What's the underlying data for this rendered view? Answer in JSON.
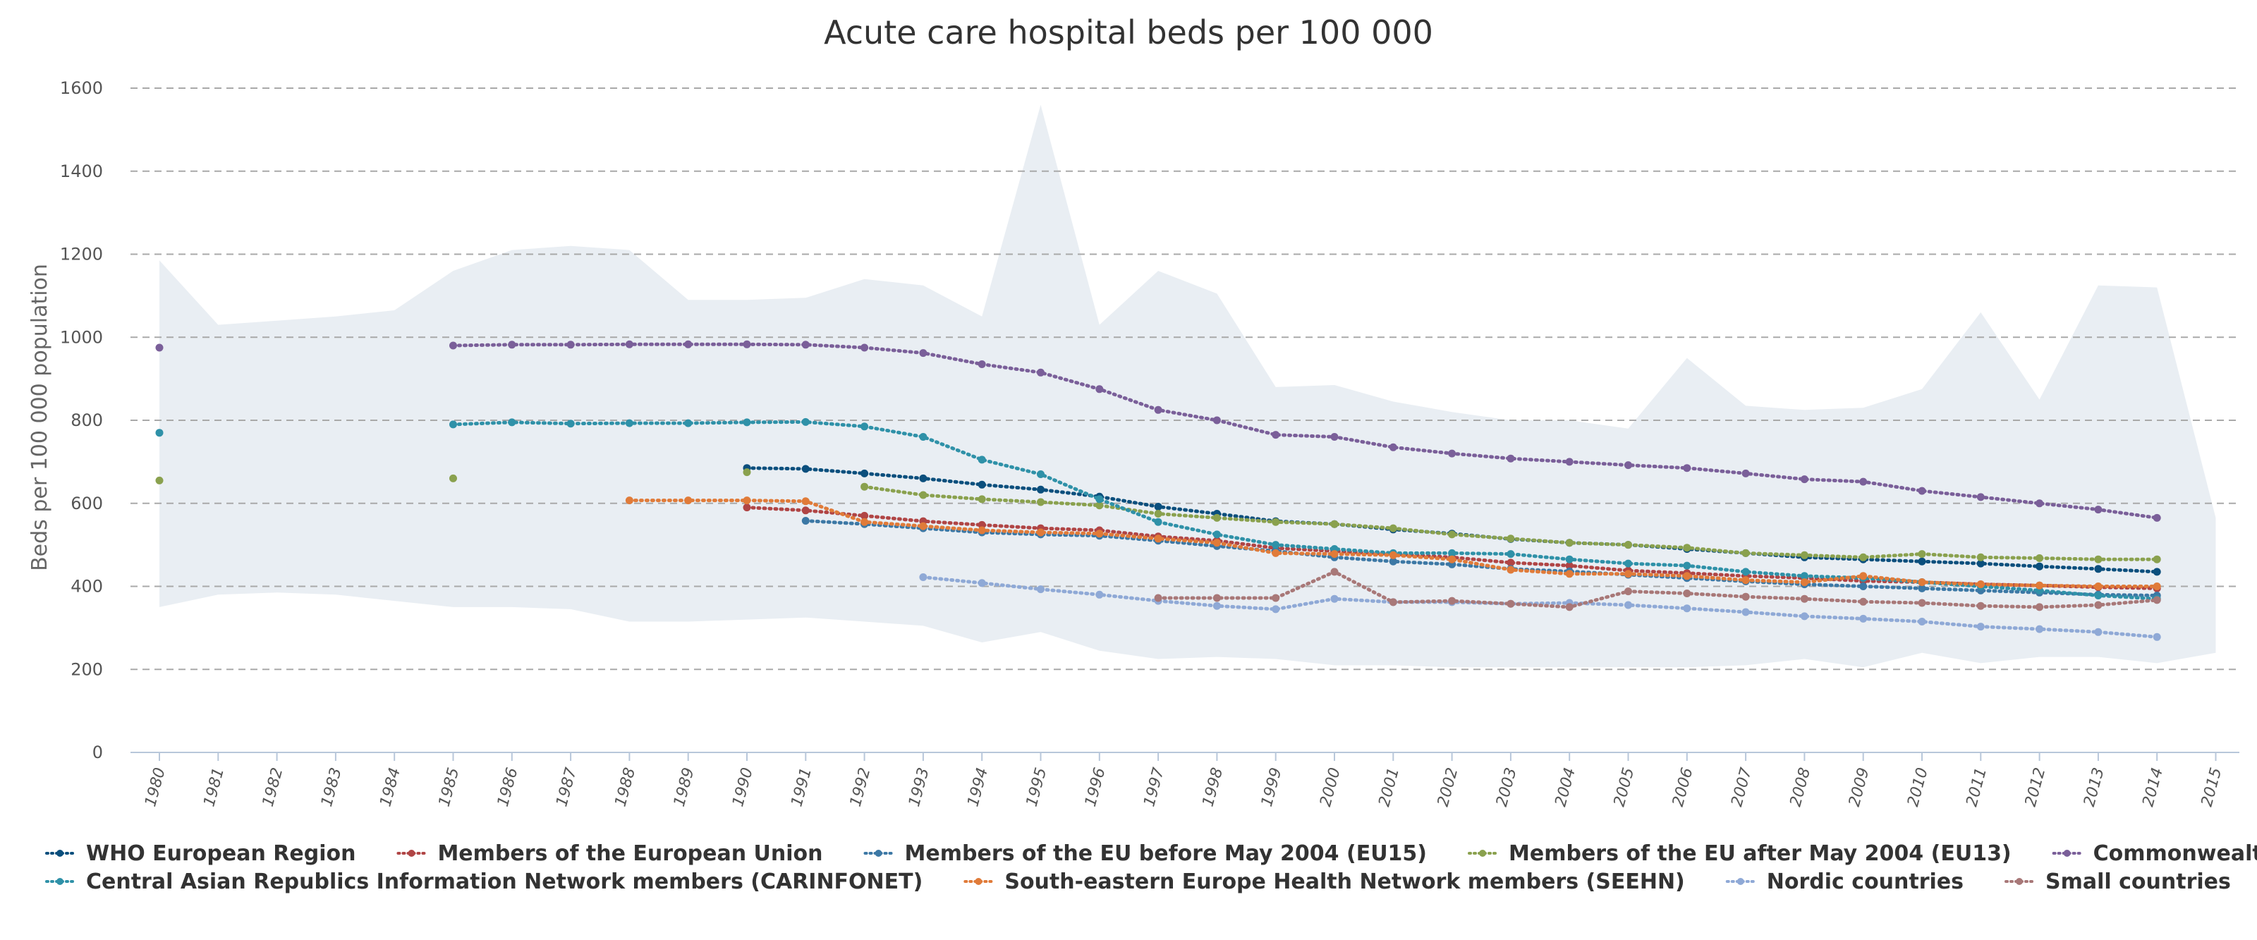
{
  "chart_data": {
    "type": "line",
    "title": "Acute care hospital beds per 100 000",
    "xlabel": "",
    "ylabel": "Beds per 100 000 population",
    "ylim": [
      0,
      1600
    ],
    "y_ticks": [
      0,
      200,
      400,
      600,
      800,
      1000,
      1200,
      1400,
      1600
    ],
    "x": [
      1980,
      1981,
      1982,
      1983,
      1984,
      1985,
      1986,
      1987,
      1988,
      1989,
      1990,
      1991,
      1992,
      1993,
      1994,
      1995,
      1996,
      1997,
      1998,
      1999,
      2000,
      2001,
      2002,
      2003,
      2004,
      2005,
      2006,
      2007,
      2008,
      2009,
      2010,
      2011,
      2012,
      2013,
      2014,
      2015
    ],
    "grid": true,
    "legend_position": "bottom",
    "range_band": {
      "color": "#e9eef3",
      "max": [
        1185,
        1030,
        1040,
        1050,
        1065,
        1160,
        1210,
        1220,
        1210,
        1090,
        1090,
        1095,
        1140,
        1125,
        1050,
        1560,
        1030,
        1160,
        1105,
        880,
        885,
        845,
        820,
        800,
        800,
        780,
        950,
        835,
        825,
        830,
        875,
        1060,
        850,
        1125,
        1120,
        565
      ],
      "min": [
        350,
        380,
        385,
        380,
        365,
        350,
        350,
        345,
        315,
        315,
        320,
        325,
        315,
        305,
        265,
        290,
        245,
        225,
        230,
        225,
        210,
        210,
        205,
        205,
        205,
        205,
        205,
        210,
        225,
        205,
        240,
        215,
        230,
        230,
        215,
        240
      ]
    },
    "series": [
      {
        "name": "WHO European Region",
        "color": "#0b4f7d",
        "values": [
          null,
          null,
          null,
          null,
          null,
          null,
          null,
          null,
          null,
          null,
          685,
          683,
          672,
          660,
          645,
          633,
          616,
          592,
          575,
          557,
          550,
          537,
          527,
          514,
          505,
          500,
          490,
          480,
          470,
          465,
          460,
          455,
          448,
          442,
          435,
          null
        ]
      },
      {
        "name": "Members of the European Union",
        "color": "#b04545",
        "values": [
          null,
          null,
          null,
          null,
          null,
          null,
          null,
          null,
          null,
          null,
          590,
          583,
          570,
          557,
          548,
          540,
          535,
          520,
          510,
          492,
          485,
          478,
          470,
          457,
          450,
          438,
          432,
          425,
          420,
          413,
          410,
          405,
          402,
          398,
          395,
          null
        ]
      },
      {
        "name": "Members of the EU before May 2004 (EU15)",
        "color": "#3c78a5",
        "values": [
          null,
          null,
          null,
          null,
          null,
          null,
          null,
          null,
          null,
          null,
          null,
          558,
          550,
          540,
          530,
          525,
          522,
          510,
          497,
          485,
          470,
          460,
          453,
          442,
          436,
          428,
          420,
          412,
          405,
          400,
          395,
          390,
          385,
          380,
          378,
          null
        ]
      },
      {
        "name": "Members of the EU after May 2004 (EU13)",
        "color": "#8aa14e",
        "values": [
          655,
          null,
          null,
          null,
          null,
          660,
          null,
          null,
          null,
          null,
          675,
          null,
          640,
          620,
          610,
          603,
          595,
          575,
          565,
          555,
          550,
          540,
          525,
          515,
          505,
          500,
          493,
          480,
          475,
          470,
          478,
          470,
          468,
          465,
          465,
          null
        ]
      },
      {
        "name": "Commonwealth of Independent States",
        "color": "#7a5f99",
        "values": [
          975,
          null,
          null,
          null,
          null,
          980,
          982,
          982,
          983,
          983,
          983,
          982,
          975,
          962,
          935,
          915,
          875,
          825,
          800,
          765,
          760,
          735,
          720,
          708,
          700,
          692,
          685,
          672,
          658,
          652,
          630,
          615,
          600,
          585,
          565,
          null
        ]
      },
      {
        "name": "Central Asian Republics Information Network members (CARINFONET)",
        "color": "#2f91a8",
        "values": [
          770,
          null,
          null,
          null,
          null,
          790,
          795,
          792,
          793,
          793,
          795,
          796,
          785,
          760,
          705,
          670,
          610,
          555,
          525,
          500,
          490,
          480,
          480,
          478,
          465,
          455,
          450,
          435,
          425,
          420,
          410,
          400,
          390,
          378,
          370,
          null
        ]
      },
      {
        "name": "South-eastern Europe Health Network members (SEEHN)",
        "color": "#e07b39",
        "values": [
          null,
          null,
          null,
          null,
          null,
          null,
          null,
          null,
          607,
          607,
          607,
          605,
          555,
          545,
          535,
          530,
          527,
          515,
          505,
          480,
          478,
          475,
          465,
          440,
          430,
          430,
          425,
          415,
          410,
          425,
          410,
          405,
          402,
          400,
          400,
          null
        ]
      },
      {
        "name": "Nordic countries",
        "color": "#8fa9d6",
        "values": [
          null,
          null,
          null,
          null,
          null,
          null,
          null,
          null,
          null,
          null,
          null,
          null,
          null,
          422,
          408,
          393,
          380,
          365,
          353,
          345,
          370,
          362,
          362,
          358,
          360,
          355,
          347,
          338,
          328,
          322,
          315,
          303,
          297,
          290,
          278,
          null
        ]
      },
      {
        "name": "Small countries",
        "color": "#a87878",
        "values": [
          null,
          null,
          null,
          null,
          null,
          null,
          null,
          null,
          null,
          null,
          null,
          null,
          null,
          null,
          null,
          null,
          null,
          372,
          372,
          372,
          435,
          362,
          365,
          358,
          350,
          388,
          383,
          375,
          370,
          363,
          360,
          353,
          350,
          355,
          367,
          null
        ]
      }
    ]
  }
}
